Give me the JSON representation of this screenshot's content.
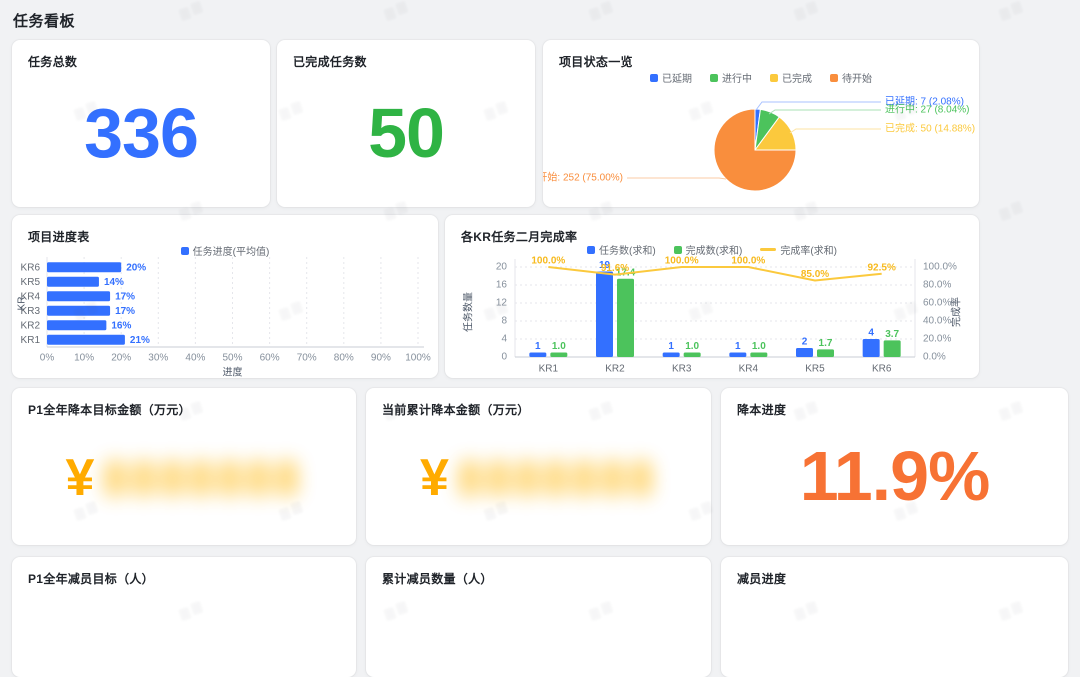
{
  "page": {
    "title": "任务看板"
  },
  "cards": {
    "total_tasks": {
      "title": "任务总数",
      "value": "336"
    },
    "completed_tasks": {
      "title": "已完成任务数",
      "value": "50"
    },
    "project_status": {
      "title": "项目状态一览"
    },
    "project_progress": {
      "title": "项目进度表"
    },
    "kr_completion": {
      "title": "各KR任务二月完成率"
    },
    "cost_target": {
      "title": "P1全年降本目标金额（万元）",
      "currency_symbol": "¥",
      "value_redacted": true,
      "redaction_placeholder": "8888888"
    },
    "cost_current": {
      "title": "当前累计降本金额（万元）",
      "currency_symbol": "¥",
      "value_redacted": true,
      "redaction_placeholder": "8888888"
    },
    "cost_progress": {
      "title": "降本进度",
      "value": "11.9%"
    },
    "headcount_target": {
      "title": "P1全年减员目标（人）"
    },
    "headcount_current": {
      "title": "累计减员数量（人）"
    },
    "headcount_progress": {
      "title": "减员进度"
    }
  },
  "colors": {
    "blue": "#3370FF",
    "green_big": "#2FB344",
    "chart_green": "#4CC35C",
    "yellow": "#FBC93D",
    "pie_orange": "#F98E3D",
    "orange_big": "#F77234",
    "amber": "#FFAB00"
  },
  "chart_data": [
    {
      "type": "pie",
      "card": "project_status",
      "legend": [
        "已延期",
        "进行中",
        "已完成",
        "待开始"
      ],
      "labels": [
        "已延期",
        "进行中",
        "已完成",
        "待开始"
      ],
      "values": [
        7,
        27,
        50,
        252
      ],
      "percents": [
        "2.08%",
        "8.04%",
        "14.88%",
        "75.00%"
      ],
      "label_texts": [
        "已延期: 7 (2.08%)",
        "进行中: 27 (8.04%)",
        "已完成: 50 (14.88%)",
        "待开始: 252 (75.00%)"
      ],
      "colors": [
        "#3370FF",
        "#4CC35C",
        "#FBC93D",
        "#F98E3D"
      ],
      "line_tints": [
        "#A8C1FF",
        "#A9E0B6",
        "#FCE3A3",
        "#FBCBA4"
      ],
      "legend_position": "top"
    },
    {
      "type": "bar",
      "orientation": "horizontal",
      "card": "project_progress",
      "legend": [
        {
          "label": "任务进度(平均值)",
          "color": "#3370FF"
        }
      ],
      "categories_top_to_bottom": [
        "KR6",
        "KR5",
        "KR4",
        "KR3",
        "KR2",
        "KR1"
      ],
      "values": [
        20,
        14,
        17,
        17,
        16,
        21
      ],
      "value_labels": [
        "20%",
        "14%",
        "17%",
        "17%",
        "16%",
        "21%"
      ],
      "xlabel": "进度",
      "ylabel": "KR",
      "x_ticks": [
        "0%",
        "10%",
        "20%",
        "30%",
        "40%",
        "50%",
        "60%",
        "70%",
        "80%",
        "90%",
        "100%"
      ],
      "xlim": [
        0,
        100
      ],
      "bar_color": "#3370FF",
      "grid": "dotted-vertical"
    },
    {
      "type": "bar+line",
      "card": "kr_completion",
      "categories": [
        "KR1",
        "KR2",
        "KR3",
        "KR4",
        "KR5",
        "KR6"
      ],
      "series": [
        {
          "name": "任务数(求和)",
          "type": "bar",
          "color": "#3370FF",
          "values": [
            1,
            19,
            1,
            1,
            2,
            4
          ],
          "labels": [
            "1",
            "19",
            "1",
            "1",
            "2",
            "4"
          ]
        },
        {
          "name": "完成数(求和)",
          "type": "bar",
          "color": "#4CC35C",
          "values": [
            1.0,
            17.4,
            1.0,
            1.0,
            1.7,
            3.7
          ],
          "labels": [
            "1.0",
            "17.4",
            "1.0",
            "1.0",
            "1.7",
            "3.7"
          ]
        },
        {
          "name": "完成率(求和)",
          "type": "line",
          "color": "#FBC93D",
          "values": [
            100.0,
            91.6,
            100.0,
            100.0,
            85.0,
            92.5
          ],
          "labels": [
            "100.0%",
            "91.6%",
            "100.0%",
            "100.0%",
            "85.0%",
            "92.5%"
          ]
        }
      ],
      "left_axis": {
        "name": "任务数量",
        "ticks": [
          "0",
          "4",
          "8",
          "12",
          "16",
          "20"
        ],
        "max": 20
      },
      "right_axis": {
        "name": "完成率",
        "ticks": [
          "0.0%",
          "20.0%",
          "40.0%",
          "60.0%",
          "80.0%",
          "100.0%"
        ],
        "max": 100
      },
      "grid": "dotted-horizontal",
      "legend_position": "top"
    }
  ]
}
